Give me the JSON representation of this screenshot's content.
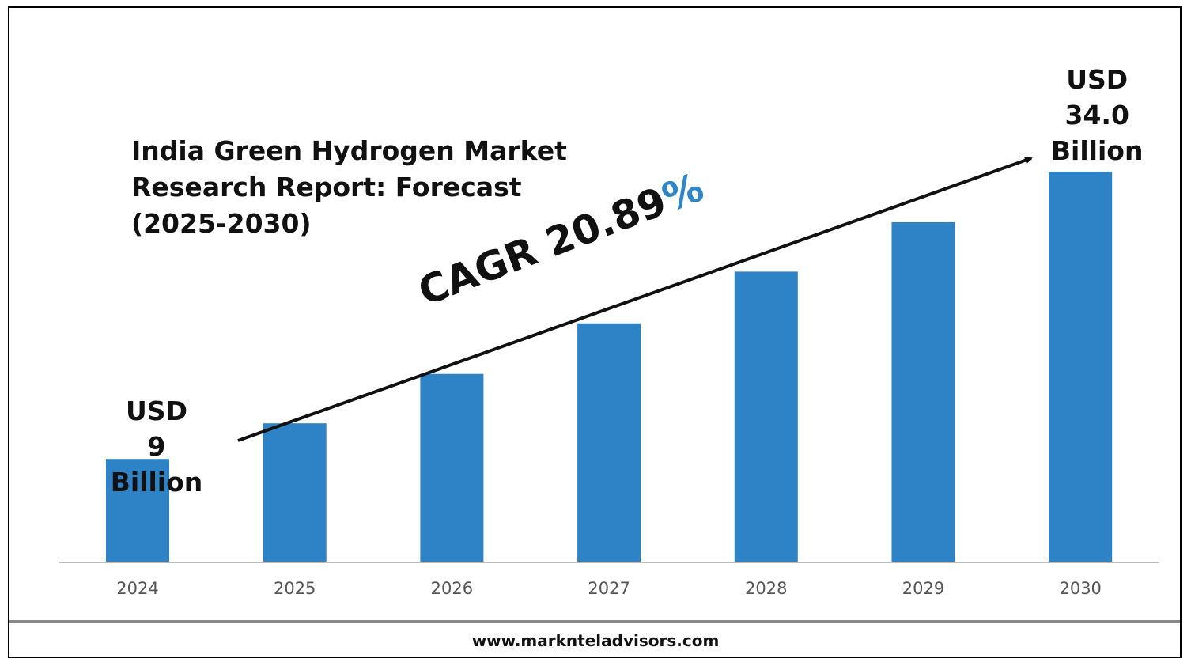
{
  "chart_data": {
    "type": "bar",
    "title_lines": [
      "India Green Hydrogen Market",
      "Research Report: Forecast",
      "(2025-2030)"
    ],
    "categories": [
      "2024",
      "2025",
      "2026",
      "2027",
      "2028",
      "2029",
      "2030"
    ],
    "values": [
      9,
      12.1,
      16.4,
      20.8,
      25.3,
      29.6,
      34.0
    ],
    "bar_color": "#2e83c6",
    "annotations": {
      "start": {
        "category": "2024",
        "lines": [
          "USD",
          "9",
          "Billion"
        ]
      },
      "end": {
        "category": "2030",
        "lines": [
          "USD",
          "34.0",
          "Billion"
        ]
      },
      "cagr_text": "CAGR 20.89",
      "cagr_pct": "%",
      "cagr_pct_color": "#2e86c8",
      "trend_arrow": true
    },
    "grid": false,
    "legend": "none"
  },
  "footer": {
    "url": "www.marknteladvisors.com"
  }
}
